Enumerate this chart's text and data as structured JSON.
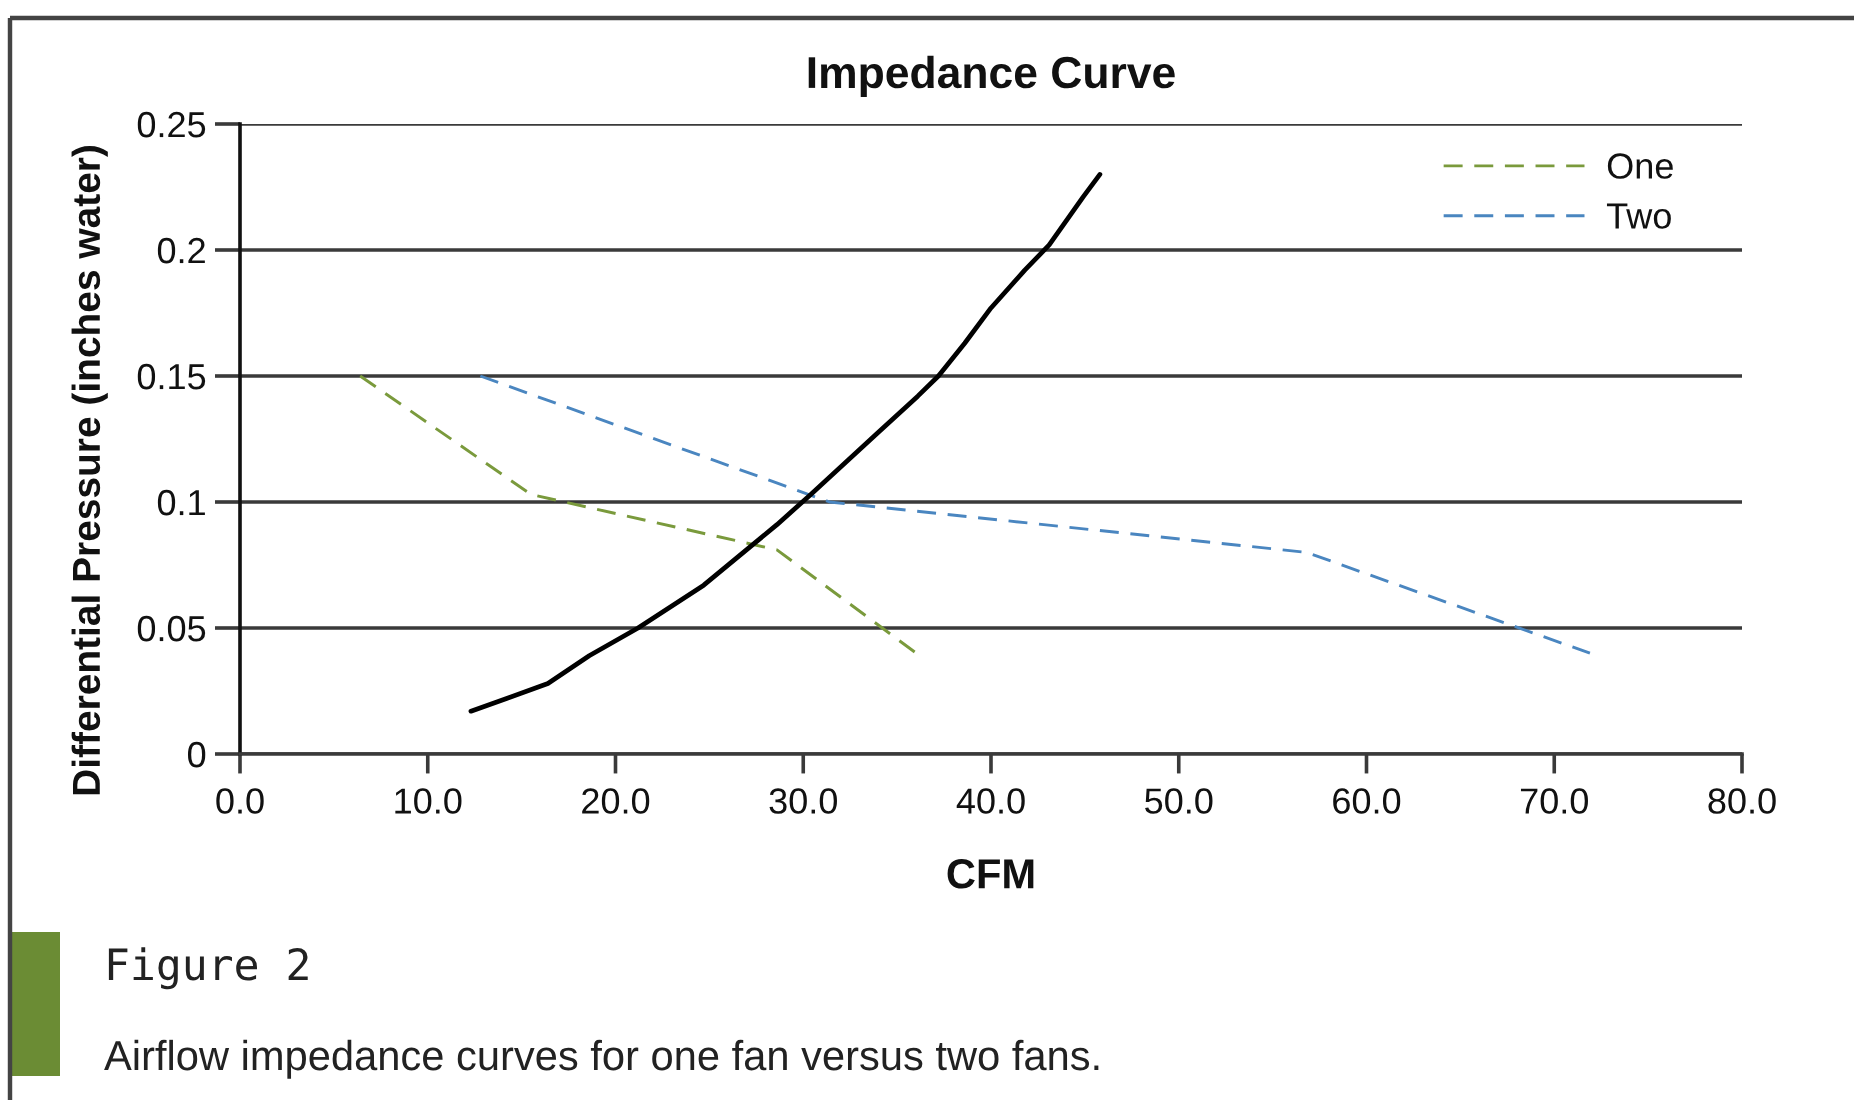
{
  "chart_data": {
    "type": "line",
    "title": "Impedance Curve",
    "xlabel": "CFM",
    "ylabel": "Differential Pressure (inches water)",
    "annotations": [
      "Figure 2",
      "Airflow impedance curves for one fan versus two fans."
    ],
    "series": [
      {
        "name": "One",
        "color": "#7a9a3c",
        "line_style": "dashed",
        "x": [
          6.4,
          15.5,
          28.6,
          36.2
        ],
        "values": [
          0.15,
          0.103,
          0.081,
          0.039
        ]
      },
      {
        "name": "Two",
        "color": "#4a86c0",
        "line_style": "dashed",
        "x": [
          12.8,
          31.4,
          56.8,
          71.9
        ],
        "values": [
          0.15,
          0.1,
          0.08,
          0.04
        ]
      },
      {
        "color": "#000000",
        "line_style": "solid",
        "x": [
          12.3,
          14.2,
          16.4,
          18.6,
          21.2,
          24.7,
          28.6,
          30.4,
          33.9,
          36.1,
          37.2,
          38.6,
          40.0,
          41.8,
          43.1,
          44.9,
          45.8
        ],
        "values": [
          0.017,
          0.022,
          0.028,
          0.039,
          0.05,
          0.067,
          0.091,
          0.103,
          0.127,
          0.142,
          0.15,
          0.163,
          0.177,
          0.192,
          0.202,
          0.221,
          0.23
        ]
      }
    ],
    "xlim": [
      0,
      80
    ],
    "xticks": [
      {
        "value": 0,
        "label": "0.0"
      },
      {
        "value": 10,
        "label": "10.0"
      },
      {
        "value": 20,
        "label": "20.0"
      },
      {
        "value": 30,
        "label": "30.0"
      },
      {
        "value": 40,
        "label": "40.0"
      },
      {
        "value": 50,
        "label": "50.0"
      },
      {
        "value": 60,
        "label": "60.0"
      },
      {
        "value": 70,
        "label": "70.0"
      },
      {
        "value": 80,
        "label": "80.0"
      }
    ],
    "ylim": [
      0,
      0.25
    ],
    "yticks": [
      0,
      0.05,
      0.1,
      0.15,
      0.2,
      0.25
    ],
    "grid": "y",
    "legend": "top right"
  }
}
